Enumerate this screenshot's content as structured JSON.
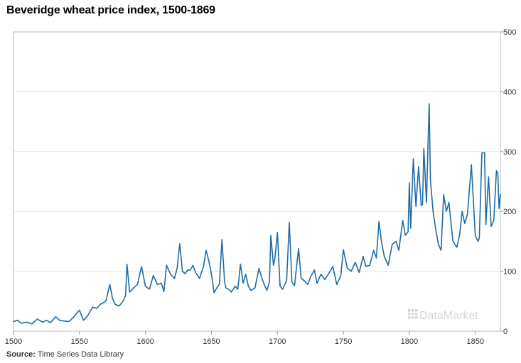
{
  "chart_data": {
    "type": "line",
    "title": "Beveridge wheat price index, 1500-1869",
    "xlabel": "",
    "ylabel": "",
    "xlim": [
      1500,
      1869
    ],
    "ylim": [
      0,
      500
    ],
    "x_ticks": [
      1500,
      1550,
      1600,
      1650,
      1700,
      1750,
      1800,
      1850
    ],
    "y_ticks": [
      0,
      100,
      200,
      300,
      400,
      500
    ],
    "grid": true,
    "line_color": "#1f6ca6",
    "series": [
      {
        "name": "",
        "x": [
          1500,
          1503,
          1506,
          1510,
          1514,
          1518,
          1522,
          1525,
          1528,
          1532,
          1535,
          1538,
          1542,
          1545,
          1548,
          1550,
          1553,
          1556,
          1560,
          1563,
          1566,
          1570,
          1573,
          1575,
          1577,
          1580,
          1583,
          1585,
          1586,
          1588,
          1591,
          1594,
          1597,
          1600,
          1603,
          1606,
          1609,
          1612,
          1614,
          1616,
          1619,
          1622,
          1624,
          1626,
          1628,
          1630,
          1632,
          1634,
          1636,
          1638,
          1641,
          1644,
          1646,
          1648,
          1650,
          1652,
          1654,
          1656,
          1658,
          1660,
          1661,
          1663,
          1665,
          1668,
          1670,
          1672,
          1674,
          1676,
          1678,
          1680,
          1683,
          1686,
          1688,
          1690,
          1692,
          1694,
          1695,
          1697,
          1698,
          1700,
          1702,
          1704,
          1707,
          1709,
          1711,
          1713,
          1716,
          1718,
          1720,
          1723,
          1725,
          1728,
          1730,
          1733,
          1736,
          1740,
          1742,
          1745,
          1748,
          1750,
          1753,
          1756,
          1759,
          1762,
          1765,
          1767,
          1770,
          1773,
          1775,
          1777,
          1779,
          1781,
          1784,
          1787,
          1790,
          1792,
          1795,
          1797,
          1799,
          1800,
          1801,
          1803,
          1805,
          1807,
          1809,
          1810,
          1811,
          1813,
          1814,
          1815,
          1816,
          1818,
          1820,
          1822,
          1824,
          1826,
          1828,
          1830,
          1833,
          1836,
          1838,
          1840,
          1842,
          1844,
          1847,
          1850,
          1852,
          1853,
          1855,
          1857,
          1858,
          1860,
          1862,
          1864,
          1866,
          1867,
          1868,
          1869
        ],
        "values": [
          16,
          18,
          13,
          15,
          12,
          20,
          15,
          18,
          14,
          24,
          18,
          17,
          16,
          22,
          30,
          35,
          18,
          25,
          40,
          38,
          45,
          50,
          78,
          55,
          45,
          42,
          50,
          60,
          112,
          65,
          72,
          78,
          108,
          75,
          70,
          93,
          78,
          80,
          66,
          110,
          95,
          88,
          105,
          146,
          100,
          96,
          102,
          102,
          110,
          98,
          88,
          108,
          135,
          118,
          95,
          64,
          72,
          78,
          153,
          82,
          72,
          70,
          65,
          75,
          70,
          112,
          80,
          95,
          75,
          68,
          72,
          105,
          90,
          78,
          68,
          82,
          160,
          110,
          120,
          165,
          75,
          70,
          85,
          182,
          82,
          76,
          138,
          88,
          85,
          78,
          90,
          102,
          80,
          95,
          86,
          100,
          108,
          78,
          92,
          136,
          105,
          100,
          115,
          98,
          125,
          108,
          110,
          135,
          122,
          183,
          148,
          125,
          110,
          145,
          150,
          135,
          185,
          160,
          166,
          248,
          172,
          288,
          208,
          275,
          210,
          212,
          305,
          215,
          300,
          380,
          252,
          200,
          170,
          145,
          135,
          228,
          200,
          215,
          150,
          140,
          160,
          200,
          180,
          195,
          278,
          160,
          150,
          155,
          298,
          298,
          178,
          258,
          175,
          185,
          268,
          265,
          205,
          228
        ]
      }
    ],
    "watermark": "DataMarket"
  },
  "footer": {
    "source_label": "Source:",
    "source_text": "Time Series Data Library"
  }
}
